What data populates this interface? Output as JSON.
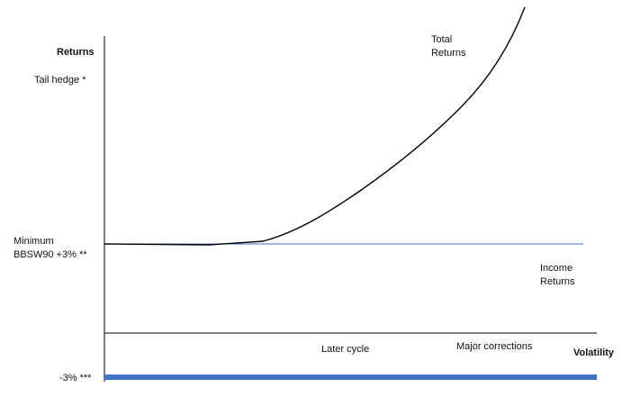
{
  "labels": {
    "y_axis": "Returns",
    "x_axis": "Volatility",
    "tail_hedge": "Tail hedge *",
    "minimum_line1": "Minimum",
    "minimum_line2": "BBSW90 +3%  **",
    "minus_three": "-3% ***",
    "total_returns_line1": "Total",
    "total_returns_line2": "Returns",
    "income_returns_line1": "Income",
    "income_returns_line2": "Returns",
    "later_cycle": "Later cycle",
    "major_corrections": "Major corrections"
  },
  "colors": {
    "axis": "#000000",
    "income_line": "#4472c4",
    "floor_band": "#4472c4",
    "curve": "#000000"
  }
}
